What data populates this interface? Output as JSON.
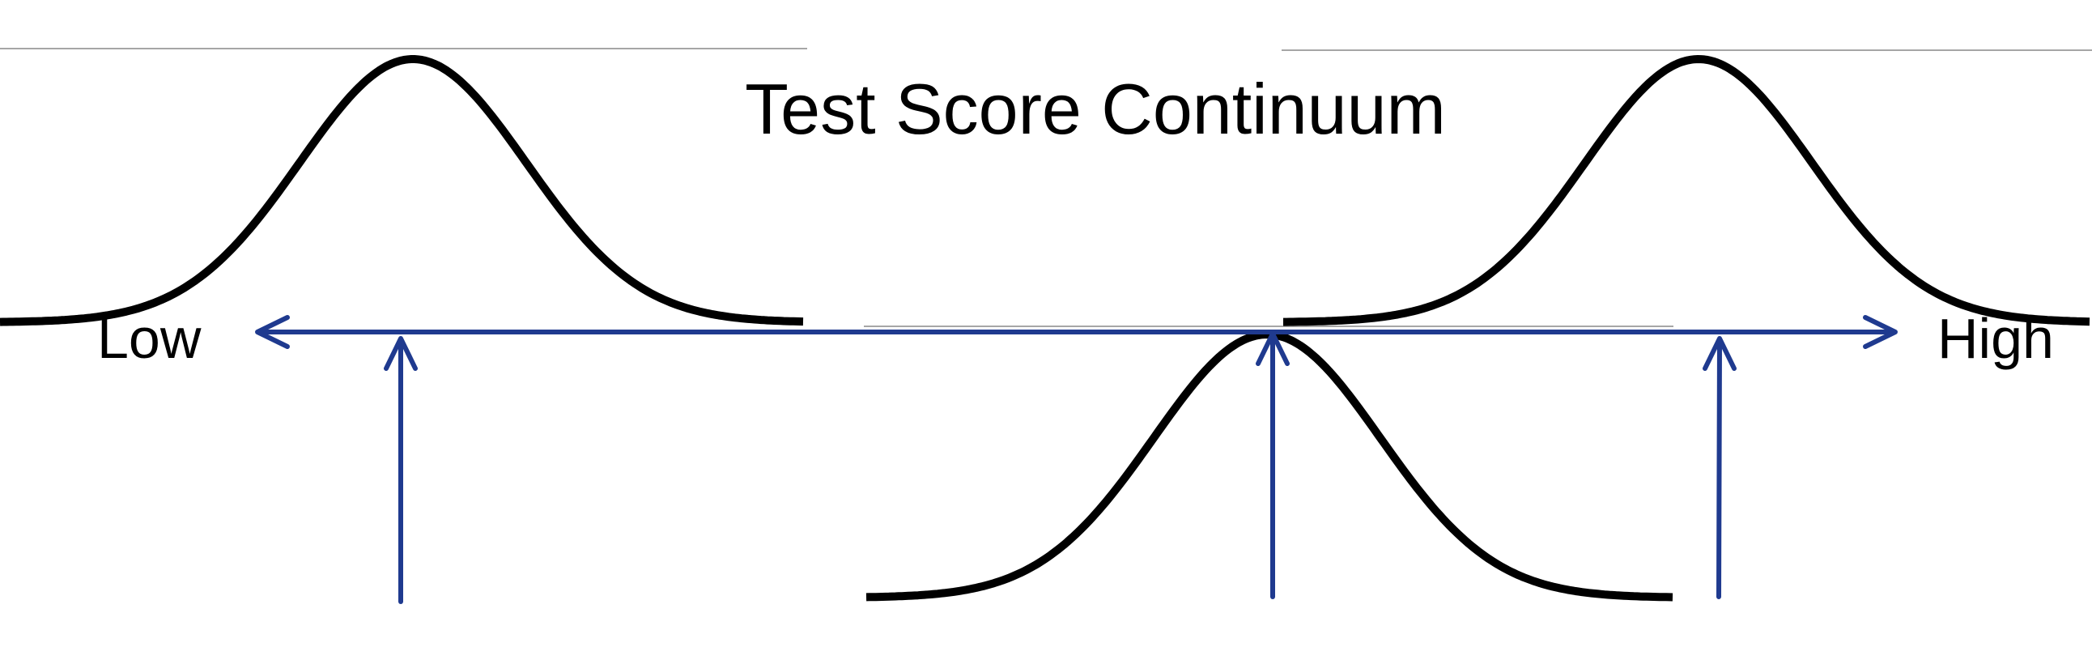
{
  "title": "Test Score Continuum",
  "axis": {
    "low_label": "Low",
    "high_label": "High"
  },
  "colors": {
    "axis": "#1f3a8f",
    "curve": "#000000",
    "frame": "#a6a6a6"
  }
}
